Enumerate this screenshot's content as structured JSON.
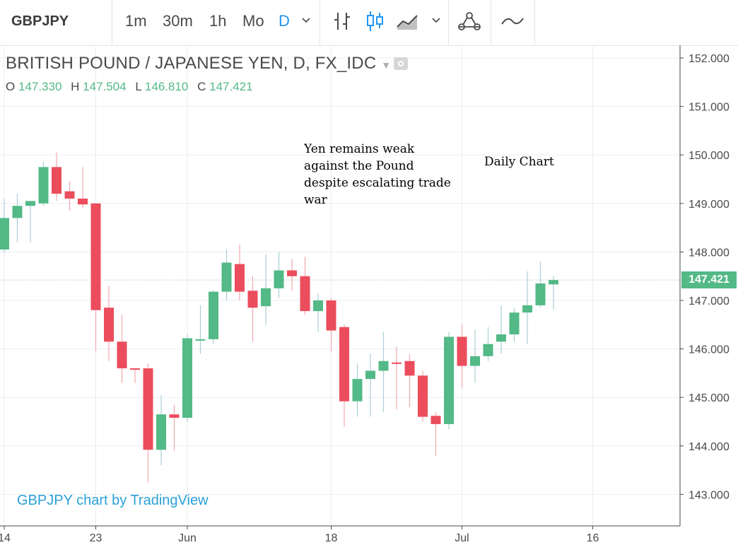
{
  "toolbar": {
    "symbol": "GBPJPY",
    "intervals": [
      "1m",
      "30m",
      "1h",
      "Mo",
      "D"
    ],
    "active_interval": "D",
    "icons": [
      "chevron-down-icon",
      "bar-chart-icon",
      "candles-icon",
      "area-chart-icon",
      "chevron-down-icon",
      "indicators-icon",
      "compare-icon"
    ]
  },
  "header": {
    "title": "BRITISH POUND / JAPANESE YEN, D, FX_IDC",
    "ohlc": {
      "o_label": "O",
      "o": "147.330",
      "h_label": "H",
      "h": "147.504",
      "l_label": "L",
      "l": "146.810",
      "c_label": "C",
      "c": "147.421"
    }
  },
  "annotations": {
    "text1": "Yen remains weak against the Pound despite escalating trade war",
    "text2": "Daily Chart"
  },
  "watermark": "GBPJPY chart by TradingView",
  "last_price": "147.421",
  "colors": {
    "up": "#53b987",
    "down": "#eb4d5c",
    "grid": "#e9edf1",
    "axis_text": "#4a4a4a",
    "accent": "#2196f3"
  },
  "chart_data": {
    "type": "candlestick",
    "title": "BRITISH POUND / JAPANESE YEN, D, FX_IDC",
    "ylim": [
      142.4,
      152.3
    ],
    "y_ticks": [
      "152.000",
      "151.000",
      "150.000",
      "149.000",
      "148.000",
      "147.000",
      "146.000",
      "145.000",
      "144.000",
      "143.000"
    ],
    "x_ticks": [
      {
        "label": "14",
        "index": 0
      },
      {
        "label": "23",
        "index": 7
      },
      {
        "label": "Jun",
        "index": 14
      },
      {
        "label": "18",
        "index": 25
      },
      {
        "label": "Jul",
        "index": 35
      },
      {
        "label": "16",
        "index": 45
      }
    ],
    "candles": [
      {
        "o": 148.05,
        "h": 149.1,
        "l": 147.98,
        "c": 148.7
      },
      {
        "o": 148.7,
        "h": 149.2,
        "l": 148.2,
        "c": 148.95
      },
      {
        "o": 148.95,
        "h": 149.05,
        "l": 148.2,
        "c": 149.05
      },
      {
        "o": 149.0,
        "h": 149.85,
        "l": 148.95,
        "c": 149.75
      },
      {
        "o": 149.75,
        "h": 150.05,
        "l": 149.05,
        "c": 149.2
      },
      {
        "o": 149.25,
        "h": 149.45,
        "l": 148.85,
        "c": 149.1
      },
      {
        "o": 149.1,
        "h": 149.75,
        "l": 148.9,
        "c": 148.98
      },
      {
        "o": 149.0,
        "h": 149.0,
        "l": 145.95,
        "c": 146.8
      },
      {
        "o": 146.85,
        "h": 147.3,
        "l": 145.75,
        "c": 146.15
      },
      {
        "o": 146.15,
        "h": 146.7,
        "l": 145.3,
        "c": 145.6
      },
      {
        "o": 145.6,
        "h": 145.6,
        "l": 145.3,
        "c": 145.58
      },
      {
        "o": 145.6,
        "h": 145.7,
        "l": 143.25,
        "c": 143.92
      },
      {
        "o": 143.92,
        "h": 145.05,
        "l": 143.6,
        "c": 144.65
      },
      {
        "o": 144.65,
        "h": 144.85,
        "l": 143.9,
        "c": 144.58
      },
      {
        "o": 144.58,
        "h": 146.3,
        "l": 144.5,
        "c": 146.22
      },
      {
        "o": 146.2,
        "h": 146.9,
        "l": 145.9,
        "c": 146.2
      },
      {
        "o": 146.2,
        "h": 147.2,
        "l": 146.1,
        "c": 147.18
      },
      {
        "o": 147.18,
        "h": 148.05,
        "l": 147.0,
        "c": 147.78
      },
      {
        "o": 147.75,
        "h": 148.15,
        "l": 147.0,
        "c": 147.18
      },
      {
        "o": 147.2,
        "h": 147.5,
        "l": 146.15,
        "c": 146.85
      },
      {
        "o": 146.88,
        "h": 147.95,
        "l": 146.5,
        "c": 147.25
      },
      {
        "o": 147.25,
        "h": 148.0,
        "l": 147.05,
        "c": 147.62
      },
      {
        "o": 147.62,
        "h": 147.85,
        "l": 147.2,
        "c": 147.5
      },
      {
        "o": 147.5,
        "h": 147.9,
        "l": 146.7,
        "c": 146.78
      },
      {
        "o": 146.78,
        "h": 147.15,
        "l": 146.35,
        "c": 147.0
      },
      {
        "o": 147.0,
        "h": 147.05,
        "l": 145.95,
        "c": 146.38
      },
      {
        "o": 146.45,
        "h": 146.5,
        "l": 144.4,
        "c": 144.92
      },
      {
        "o": 144.92,
        "h": 145.7,
        "l": 144.6,
        "c": 145.38
      },
      {
        "o": 145.38,
        "h": 145.9,
        "l": 144.6,
        "c": 145.55
      },
      {
        "o": 145.55,
        "h": 146.35,
        "l": 144.7,
        "c": 145.75
      },
      {
        "o": 145.72,
        "h": 146.05,
        "l": 144.75,
        "c": 145.7
      },
      {
        "o": 145.75,
        "h": 145.9,
        "l": 144.8,
        "c": 145.45
      },
      {
        "o": 145.45,
        "h": 145.55,
        "l": 144.5,
        "c": 144.6
      },
      {
        "o": 144.62,
        "h": 144.7,
        "l": 143.8,
        "c": 144.45
      },
      {
        "o": 144.45,
        "h": 146.35,
        "l": 144.35,
        "c": 146.25
      },
      {
        "o": 146.25,
        "h": 146.5,
        "l": 145.2,
        "c": 145.65
      },
      {
        "o": 145.65,
        "h": 146.4,
        "l": 145.3,
        "c": 145.85
      },
      {
        "o": 145.85,
        "h": 146.45,
        "l": 145.75,
        "c": 146.1
      },
      {
        "o": 146.15,
        "h": 146.9,
        "l": 145.9,
        "c": 146.3
      },
      {
        "o": 146.3,
        "h": 146.85,
        "l": 146.15,
        "c": 146.75
      },
      {
        "o": 146.75,
        "h": 147.6,
        "l": 146.1,
        "c": 146.9
      },
      {
        "o": 146.9,
        "h": 147.8,
        "l": 146.85,
        "c": 147.35
      },
      {
        "o": 147.33,
        "h": 147.504,
        "l": 146.81,
        "c": 147.421
      }
    ]
  }
}
